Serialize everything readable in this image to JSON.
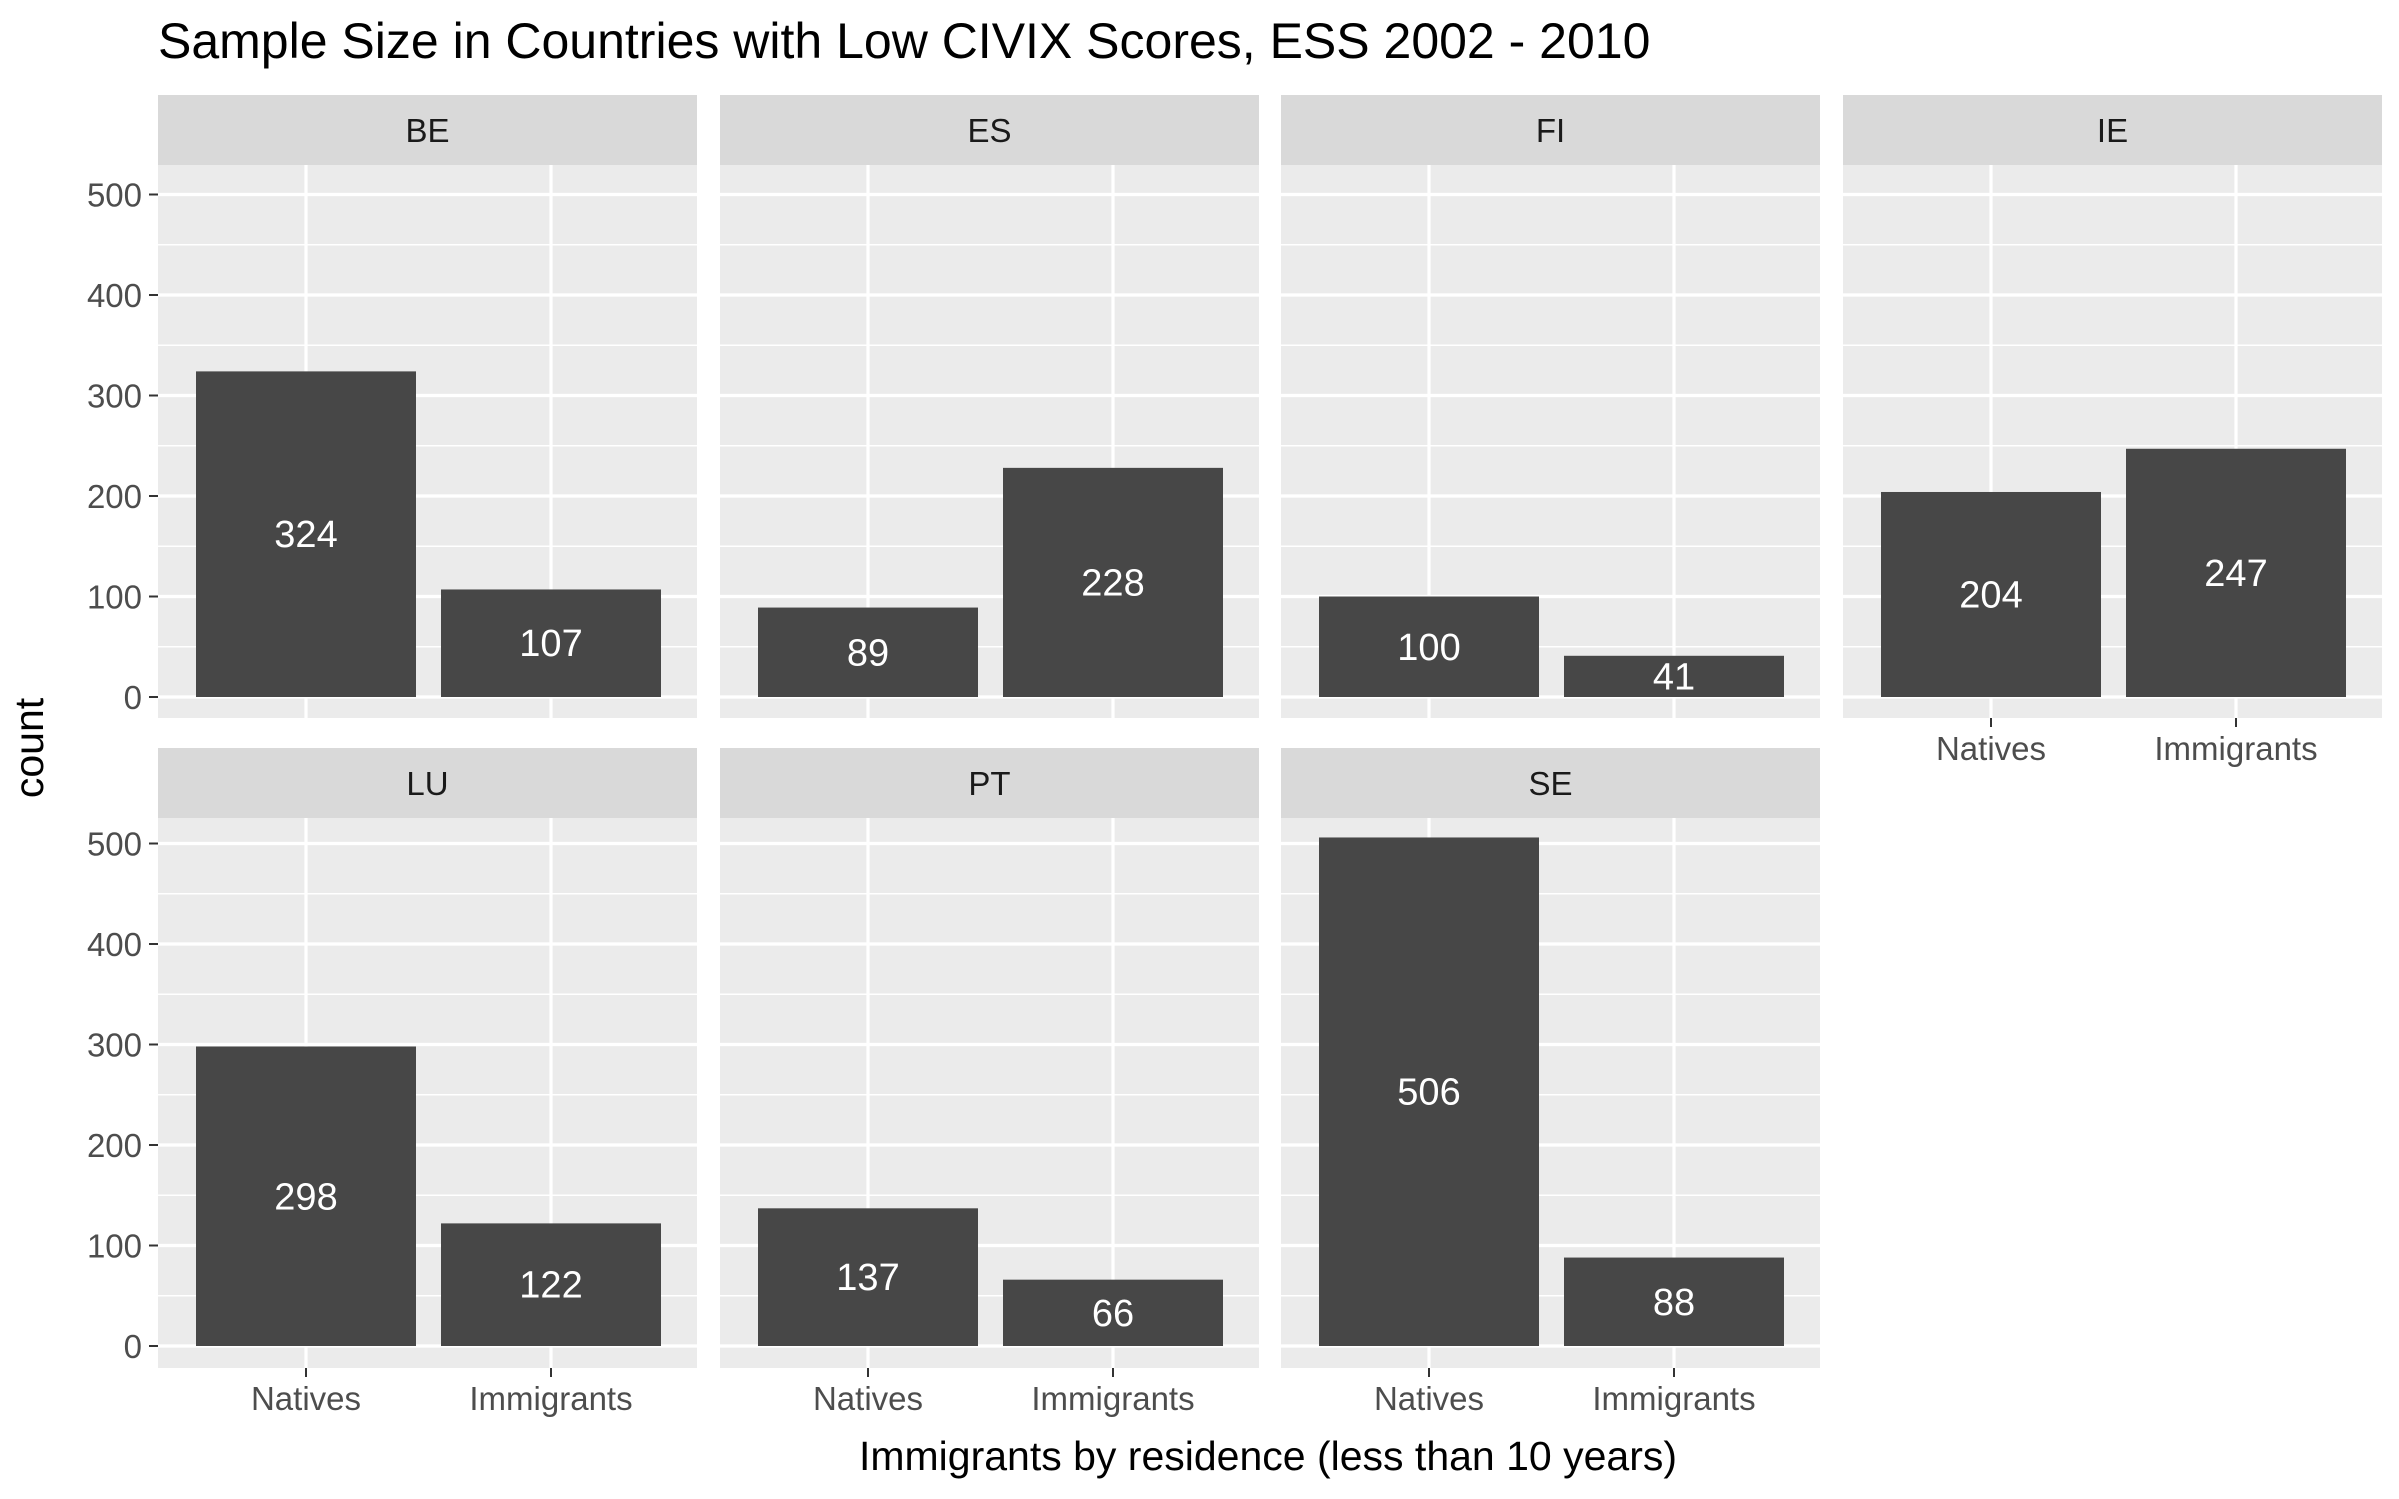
{
  "chart_data": {
    "type": "bar",
    "title": "Sample Size in Countries with Low CIVIX Scores, ESS 2002 - 2010",
    "xlabel": "Immigrants by residence (less than 10 years)",
    "ylabel": "count",
    "categories": [
      "Natives",
      "Immigrants"
    ],
    "ylim": [
      0,
      530
    ],
    "yticks": [
      0,
      100,
      200,
      300,
      400,
      500
    ],
    "grid": true,
    "panels": [
      {
        "facet": "BE",
        "values": [
          324,
          107
        ]
      },
      {
        "facet": "ES",
        "values": [
          89,
          228
        ]
      },
      {
        "facet": "FI",
        "values": [
          100,
          41
        ]
      },
      {
        "facet": "IE",
        "values": [
          204,
          247
        ]
      },
      {
        "facet": "LU",
        "values": [
          298,
          122
        ]
      },
      {
        "facet": "PT",
        "values": [
          137,
          66
        ]
      },
      {
        "facet": "SE",
        "values": [
          506,
          88
        ]
      }
    ]
  },
  "colors": {
    "panel_background": "#ebebeb",
    "strip_background": "#d9d9d9",
    "grid_line": "#ffffff",
    "bar_fill": "#474747",
    "bar_label": "#ffffff",
    "tick_label": "#4d4d4d"
  }
}
